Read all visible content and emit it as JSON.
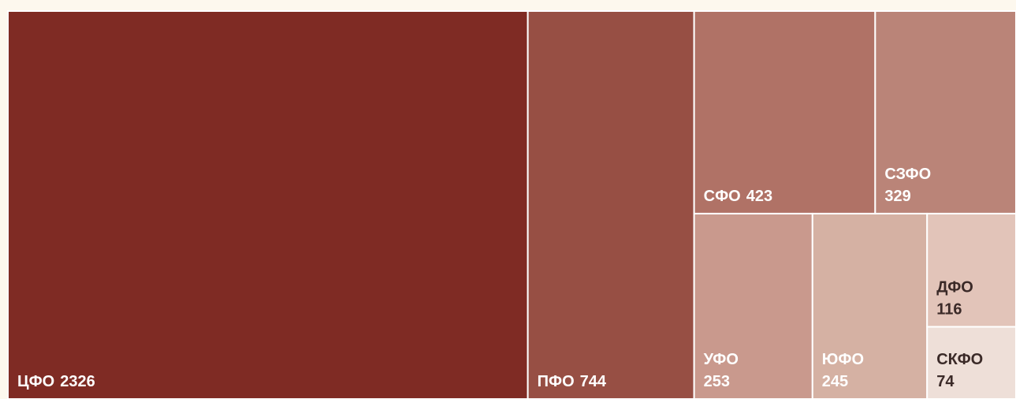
{
  "chart_data": {
    "type": "treemap",
    "categories": [
      "ЦФО",
      "ПФО",
      "СФО",
      "СЗФО",
      "УФО",
      "ЮФО",
      "ДФО",
      "СКФО"
    ],
    "values": [
      2326,
      744,
      423,
      329,
      253,
      245,
      116,
      74
    ],
    "colors": [
      "#7f2b24",
      "#974f44",
      "#b07266",
      "#ba8478",
      "#c9998d",
      "#d5b1a3",
      "#e2c4b9",
      "#eedfd8"
    ]
  }
}
